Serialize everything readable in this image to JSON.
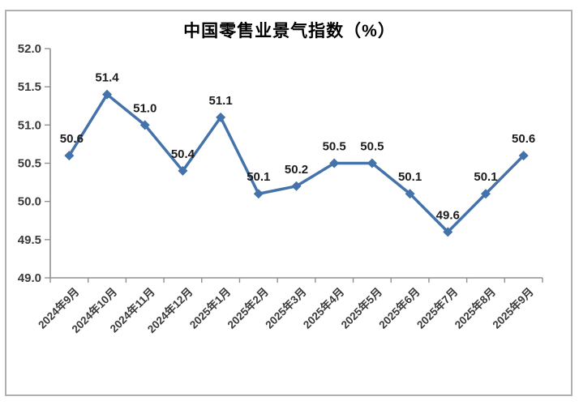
{
  "chart_data": {
    "type": "line",
    "title": "中国零售业景气指数（%）",
    "categories": [
      "2024年9月",
      "2024年10月",
      "2024年11月",
      "2024年12月",
      "2025年1月",
      "2025年2月",
      "2025年3月",
      "2025年4月",
      "2025年5月",
      "2025年6月",
      "2025年7月",
      "2025年8月",
      "2025年9月"
    ],
    "values": [
      50.6,
      51.4,
      51.0,
      50.4,
      51.1,
      50.1,
      50.2,
      50.5,
      50.5,
      50.1,
      49.6,
      50.1,
      50.6
    ],
    "data_labels": [
      "50.6",
      "51.4",
      "51.0",
      "50.4",
      "51.1",
      "50.1",
      "50.2",
      "50.5",
      "50.5",
      "50.1",
      "49.6",
      "50.1",
      "50.6"
    ],
    "xlabel": "",
    "ylabel": "",
    "ylim": [
      49.0,
      52.0
    ],
    "ytick_step": 0.5,
    "ytick_labels": [
      "49.0",
      "49.5",
      "50.0",
      "50.5",
      "51.0",
      "51.5",
      "52.0"
    ],
    "grid": false,
    "legend_position": "none",
    "marker_shape": "diamond",
    "colors": {
      "line": "#4472aa",
      "marker": "#4472aa",
      "axis": "#919191",
      "tick_label": "#3a3a3a",
      "data_label": "#1c1c1c",
      "title": "#000000",
      "frame_border": "#b0b0b0"
    }
  }
}
